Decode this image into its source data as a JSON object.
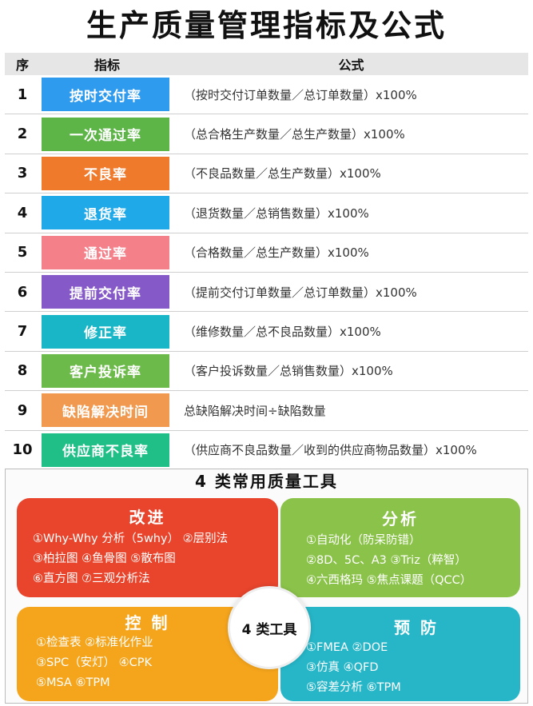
{
  "title": "生产质量管理指标及公式",
  "table": {
    "headers": {
      "num": "序",
      "name": "指标",
      "formula": "公式"
    },
    "rows": [
      {
        "num": "1",
        "name": "按时交付率",
        "formula": "（按时交付订单数量／总订单数量）x100%",
        "color": "#2f9bef"
      },
      {
        "num": "2",
        "name": "一次通过率",
        "formula": "（总合格生产数量／总生产数量）x100%",
        "color": "#5db547"
      },
      {
        "num": "3",
        "name": "不良率",
        "formula": "（不良品数量／总生产数量）x100%",
        "color": "#f07a2c"
      },
      {
        "num": "4",
        "name": "退货率",
        "formula": "（退货数量／总销售数量）x100%",
        "color": "#1fa9e8"
      },
      {
        "num": "5",
        "name": "通过率",
        "formula": "（合格数量／总生产数量）x100%",
        "color": "#f4818a"
      },
      {
        "num": "6",
        "name": "提前交付率",
        "formula": "（提前交付订单数量／总订单数量）x100%",
        "color": "#8659c8"
      },
      {
        "num": "7",
        "name": "修正率",
        "formula": "（维修数量／总不良品数量）x100%",
        "color": "#18b6c6"
      },
      {
        "num": "8",
        "name": "客户投诉率",
        "formula": "（客户投诉数量／总销售数量）x100%",
        "color": "#6cba4a"
      },
      {
        "num": "9",
        "name": "缺陷解决时间",
        "formula": "总缺陷解决时间÷缺陷数量",
        "color": "#f19a4f"
      },
      {
        "num": "10",
        "name": "供应商不良率",
        "formula": "（供应商不良品数量／收到的供应商物品数量）x100%",
        "color": "#1fbf87"
      }
    ]
  },
  "tools": {
    "title": "4 类常用质量工具",
    "center": "4 类工具",
    "improve": {
      "title": "改进",
      "lines": [
        "①Why-Why 分析（5why） ②层别法",
        "③柏拉图 ④鱼骨图 ⑤散布图",
        "⑥直方图 ⑦三观分析法"
      ]
    },
    "analyze": {
      "title": "分析",
      "lines": [
        "①自动化（防呆防错）",
        "②8D、5C、A3 ③Triz（粹智）",
        "④六西格玛 ⑤焦点课题（QCC）"
      ]
    },
    "control": {
      "title": "控 制",
      "lines": [
        "①检查表 ②标准化作业",
        "③SPC（安灯） ④CPK",
        "⑤MSA ⑥TPM"
      ]
    },
    "prevent": {
      "title": "预 防",
      "lines": [
        "①FMEA ②DOE",
        "③仿真 ④QFD",
        "⑤容差分析 ⑥TPM"
      ]
    }
  }
}
